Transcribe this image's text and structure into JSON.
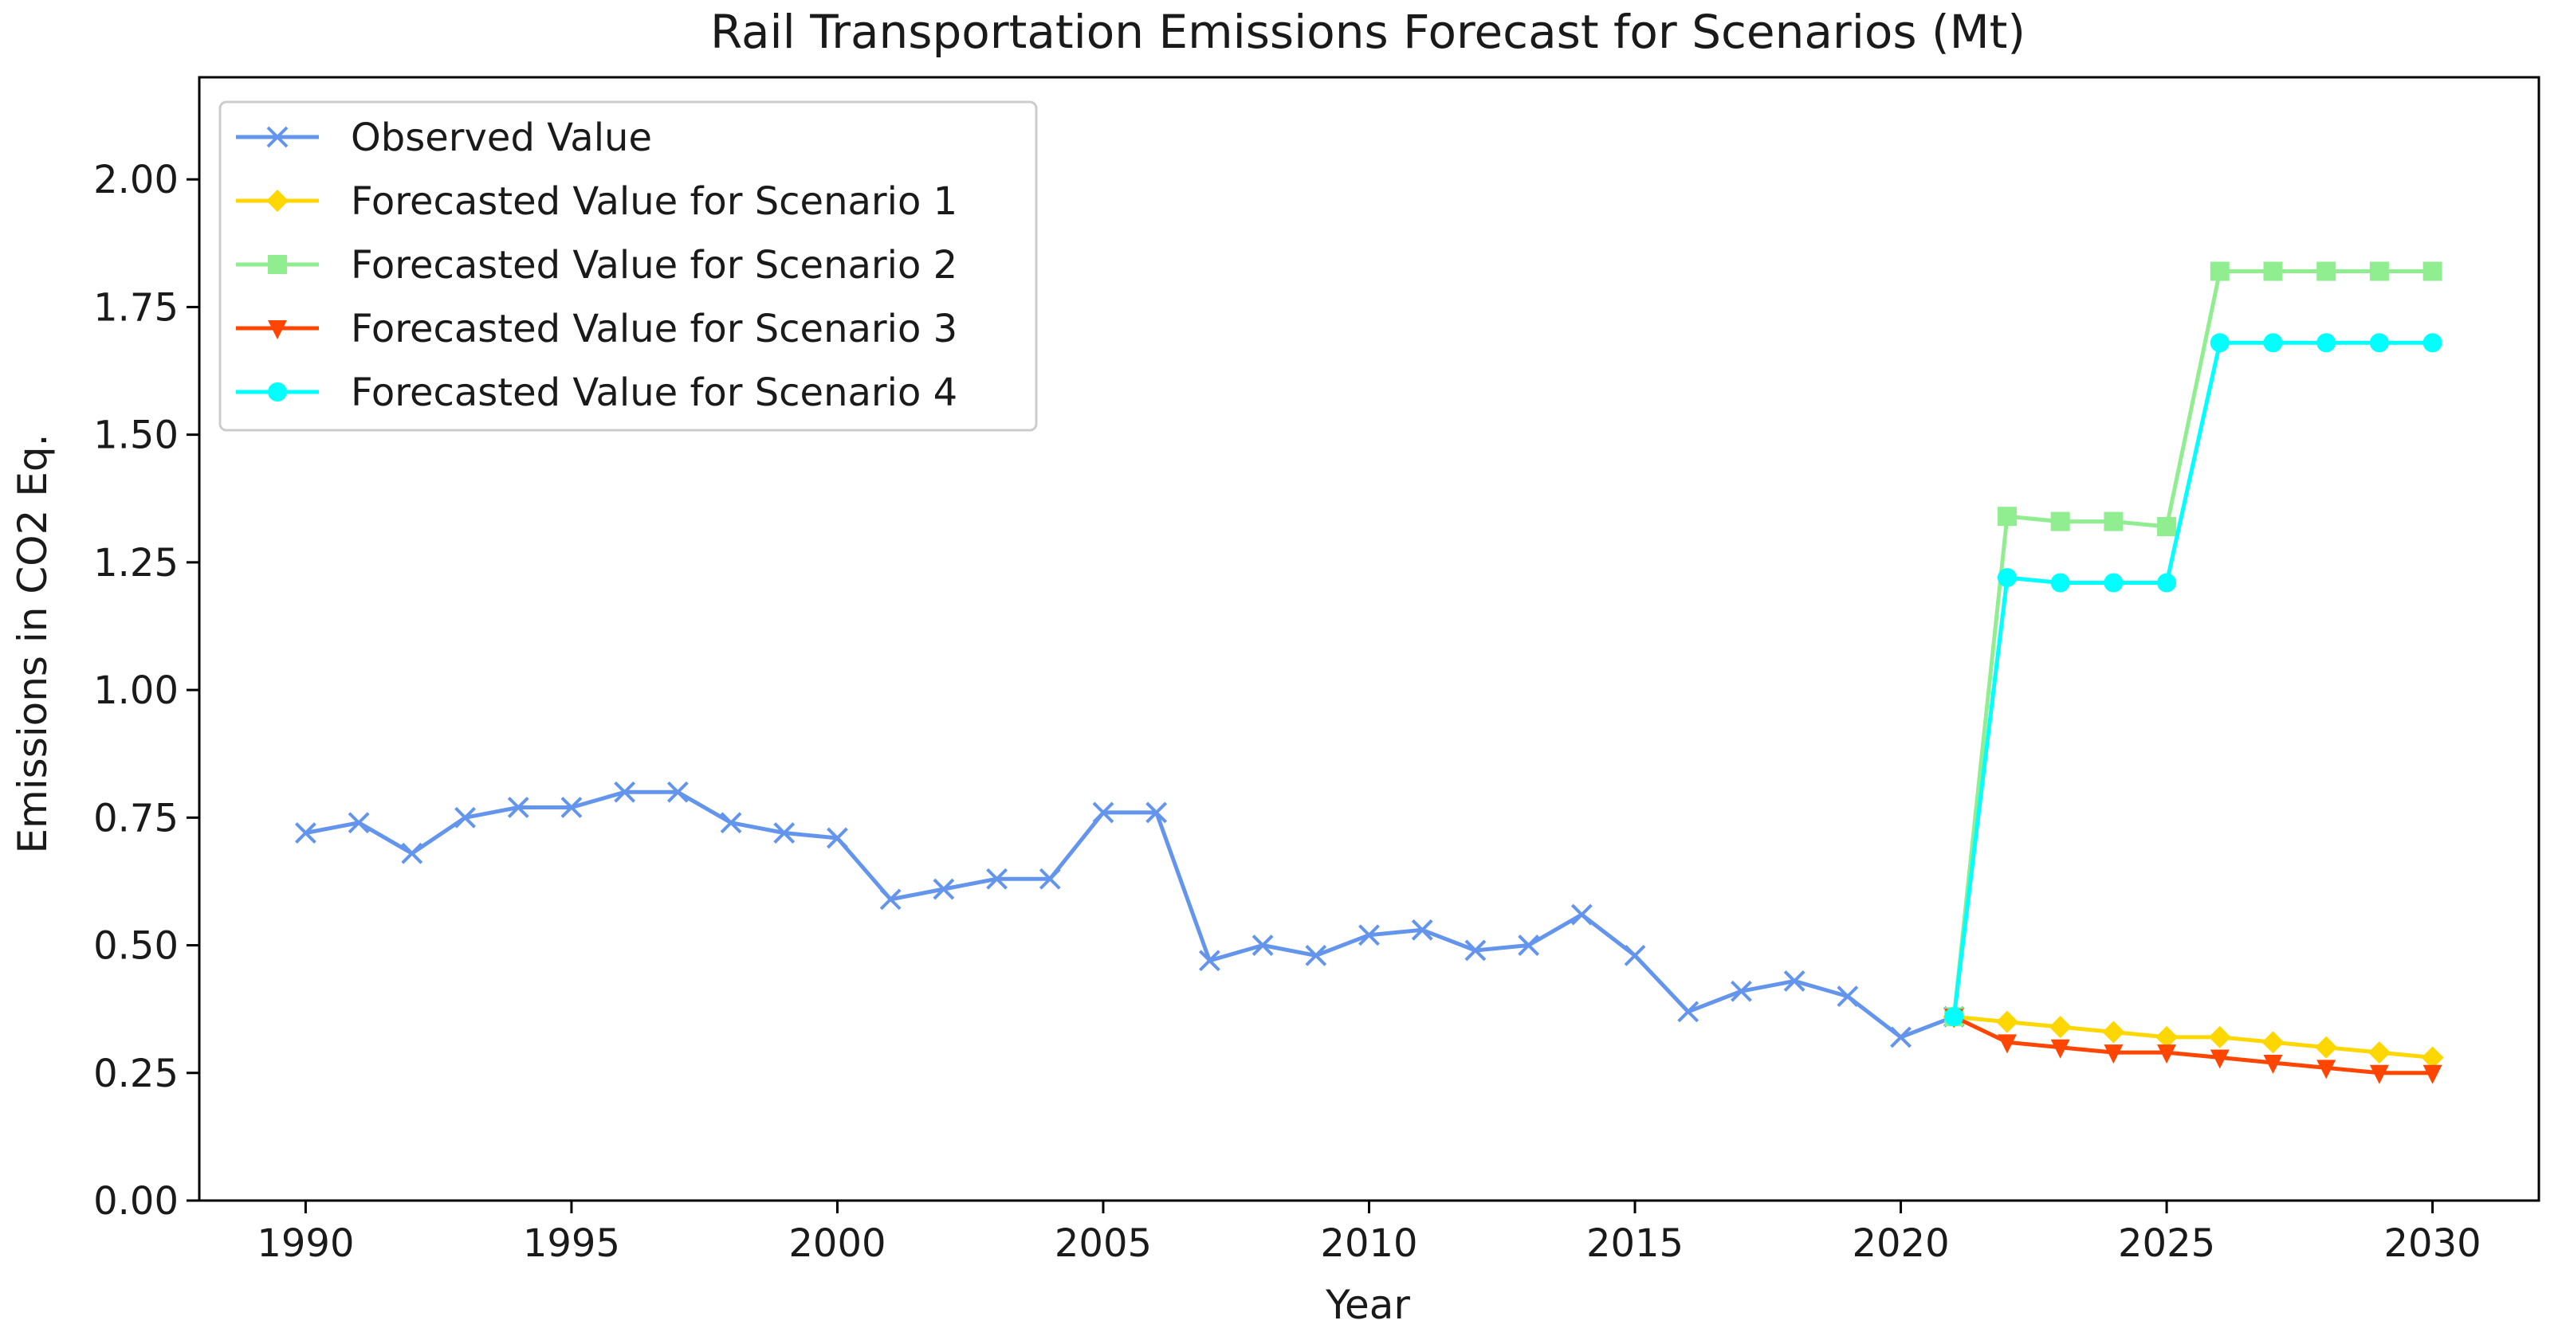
{
  "chart_data": {
    "type": "line",
    "title": "Rail Transportation Emissions Forecast for Scenarios (Mt)",
    "xlabel": "Year",
    "ylabel": "Emissions in CO2 Eq.",
    "xlim": [
      1988,
      2032
    ],
    "ylim": [
      0,
      2.2
    ],
    "xticks": [
      1990,
      1995,
      2000,
      2005,
      2010,
      2015,
      2020,
      2025,
      2030
    ],
    "yticks": [
      0.0,
      0.25,
      0.5,
      0.75,
      1.0,
      1.25,
      1.5,
      1.75,
      2.0
    ],
    "ytick_labels": [
      "0.00",
      "0.25",
      "0.50",
      "0.75",
      "1.00",
      "1.25",
      "1.50",
      "1.75",
      "2.00"
    ],
    "grid": false,
    "legend_position": "top-left",
    "series": [
      {
        "name": "Observed Value",
        "color": "#6495ED",
        "marker": "x",
        "x": [
          1990,
          1991,
          1992,
          1993,
          1994,
          1995,
          1996,
          1997,
          1998,
          1999,
          2000,
          2001,
          2002,
          2003,
          2004,
          2005,
          2006,
          2007,
          2008,
          2009,
          2010,
          2011,
          2012,
          2013,
          2014,
          2015,
          2016,
          2017,
          2018,
          2019,
          2020,
          2021
        ],
        "values": [
          0.72,
          0.74,
          0.68,
          0.75,
          0.77,
          0.77,
          0.8,
          0.8,
          0.74,
          0.72,
          0.71,
          0.59,
          0.61,
          0.63,
          0.63,
          0.76,
          0.76,
          0.47,
          0.5,
          0.48,
          0.52,
          0.53,
          0.49,
          0.5,
          0.56,
          0.48,
          0.37,
          0.41,
          0.43,
          0.4,
          0.32,
          0.36
        ]
      },
      {
        "name": "Forecasted Value for Scenario 1",
        "color": "#FFD700",
        "marker": "diamond",
        "x": [
          2021,
          2022,
          2023,
          2024,
          2025,
          2026,
          2027,
          2028,
          2029,
          2030
        ],
        "values": [
          0.36,
          0.35,
          0.34,
          0.33,
          0.32,
          0.32,
          0.31,
          0.3,
          0.29,
          0.28
        ]
      },
      {
        "name": "Forecasted Value for Scenario 2",
        "color": "#90EE90",
        "marker": "square",
        "x": [
          2021,
          2022,
          2023,
          2024,
          2025,
          2026,
          2027,
          2028,
          2029,
          2030
        ],
        "values": [
          0.36,
          1.34,
          1.33,
          1.33,
          1.32,
          1.82,
          1.82,
          1.82,
          1.82,
          1.82
        ]
      },
      {
        "name": "Forecasted Value for Scenario 3",
        "color": "#FF4500",
        "marker": "triangle-down",
        "x": [
          2021,
          2022,
          2023,
          2024,
          2025,
          2026,
          2027,
          2028,
          2029,
          2030
        ],
        "values": [
          0.36,
          0.31,
          0.3,
          0.29,
          0.29,
          0.28,
          0.27,
          0.26,
          0.25,
          0.25
        ]
      },
      {
        "name": "Forecasted Value for Scenario 4",
        "color": "#00FFFF",
        "marker": "circle",
        "x": [
          2021,
          2022,
          2023,
          2024,
          2025,
          2026,
          2027,
          2028,
          2029,
          2030
        ],
        "values": [
          0.36,
          1.22,
          1.21,
          1.21,
          1.21,
          1.68,
          1.68,
          1.68,
          1.68,
          1.68
        ]
      }
    ]
  }
}
